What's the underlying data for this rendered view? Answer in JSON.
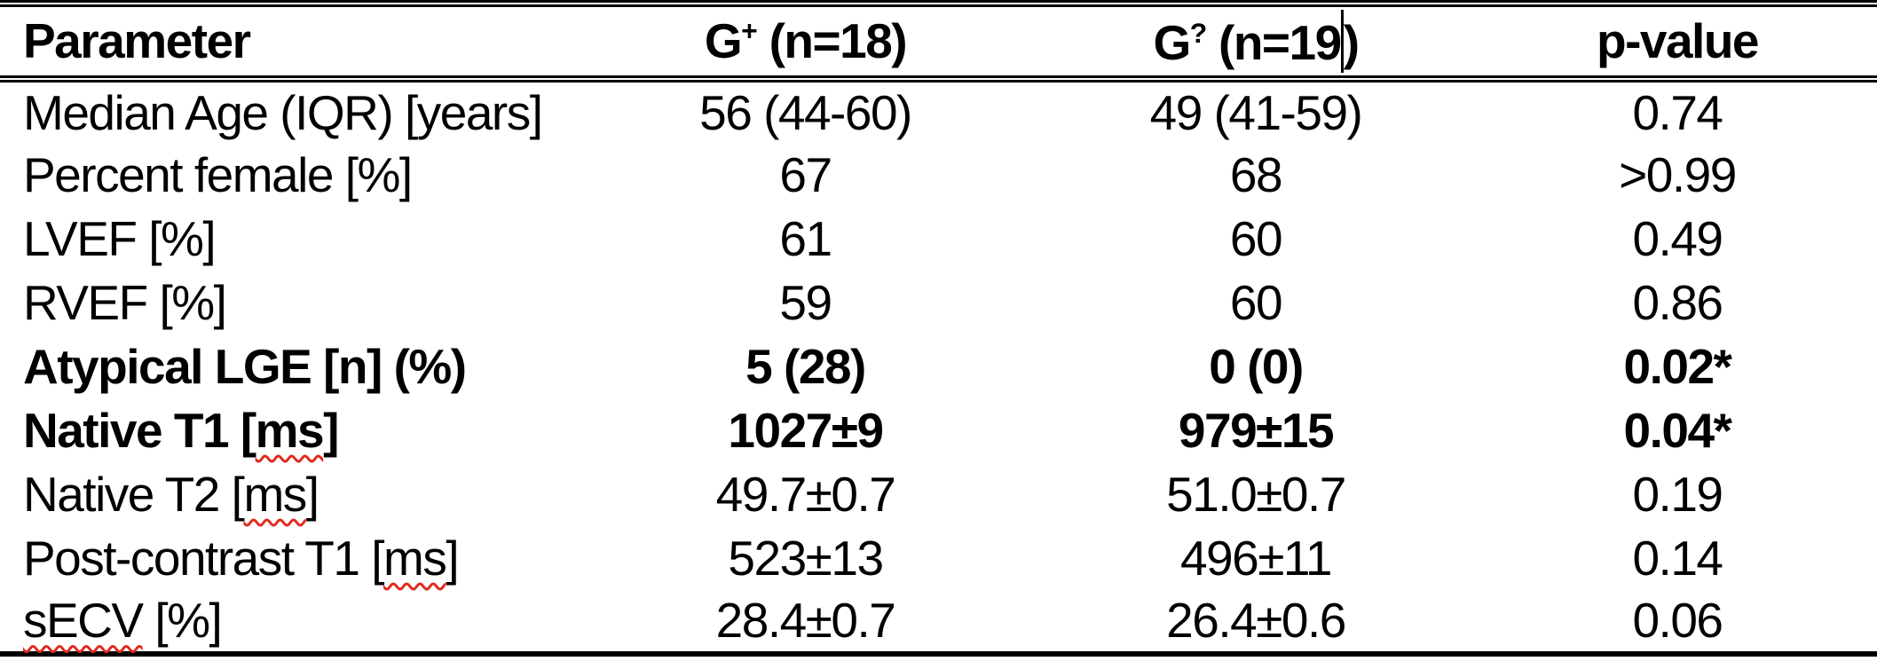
{
  "page": {
    "background_color": "#ffffff",
    "text_color": "#000000",
    "spellcheck_squiggle_color": "#e02b20",
    "text_cursor_visible": true
  },
  "table": {
    "header": {
      "parameter": "Parameter",
      "group1": {
        "base": "G",
        "sup": "+",
        "rest": " (n=18)"
      },
      "group2": {
        "base": "G",
        "sup": "?",
        "rest_before_cursor": " (n=19",
        "rest_after_cursor": ")"
      },
      "pvalue": "p-value"
    },
    "rows": [
      {
        "param_pre": "Median Age (IQR) [years]",
        "param_mis": "",
        "param_post": "",
        "g1": "56 (44-60)",
        "g2": "49 (41-59)",
        "p": "0.74",
        "bold": false
      },
      {
        "param_pre": "Percent female [%]",
        "param_mis": "",
        "param_post": "",
        "g1": "67",
        "g2": "68",
        "p": ">0.99",
        "bold": false
      },
      {
        "param_pre": "LVEF [%]",
        "param_mis": "",
        "param_post": "",
        "g1": "61",
        "g2": "60",
        "p": "0.49",
        "bold": false
      },
      {
        "param_pre": "RVEF [%]",
        "param_mis": "",
        "param_post": "",
        "g1": "59",
        "g2": "60",
        "p": "0.86",
        "bold": false
      },
      {
        "param_pre": "Atypical LGE [n] (%)",
        "param_mis": "",
        "param_post": "",
        "g1": "5 (28)",
        "g2": "0 (0)",
        "p": "0.02*",
        "bold": true
      },
      {
        "param_pre": "Native T1 [",
        "param_mis": "ms",
        "param_post": "]",
        "g1": "1027±9",
        "g2": "979±15",
        "p": "0.04*",
        "bold": true
      },
      {
        "param_pre": "Native T2 [",
        "param_mis": "ms",
        "param_post": "]",
        "g1": "49.7±0.7",
        "g2": "51.0±0.7",
        "p": "0.19",
        "bold": false
      },
      {
        "param_pre": "Post-contrast T1 [",
        "param_mis": "ms",
        "param_post": "]",
        "g1": "523±13",
        "g2": "496±11",
        "p": "0.14",
        "bold": false
      },
      {
        "param_pre": "",
        "param_mis": "sECV",
        "param_post": " [%]",
        "g1": "28.4±0.7",
        "g2": "26.4±0.6",
        "p": "0.06",
        "bold": false
      }
    ]
  }
}
